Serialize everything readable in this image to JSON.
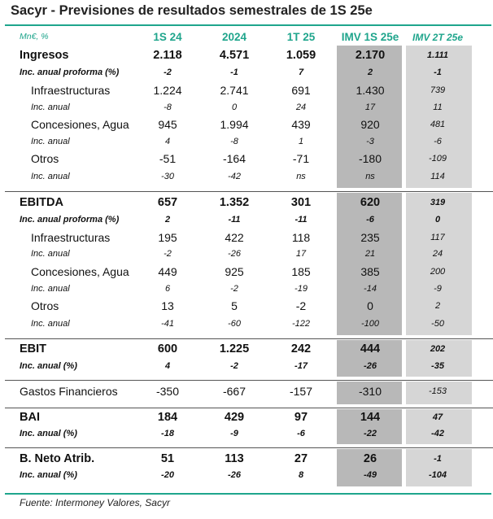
{
  "title": "Sacyr - Previsiones de resultados semestrales de 1S 25e",
  "header": {
    "unit": "Mn€, %",
    "cols": [
      "1S 24",
      "2024",
      "1T 25",
      "IMV 1S 25e",
      "IMV 2T 25e"
    ]
  },
  "rows": [
    {
      "label": "Ingresos",
      "values": [
        "2.118",
        "4.571",
        "1.059",
        "2.170",
        "1.111"
      ]
    },
    {
      "label": "Inc. anual proforma (%)",
      "values": [
        "-2",
        "-1",
        "7",
        "2",
        "-1"
      ]
    },
    {
      "label": "Infraestructuras",
      "values": [
        "1.224",
        "2.741",
        "691",
        "1.430",
        "739"
      ]
    },
    {
      "label": "Inc. anual",
      "values": [
        "-8",
        "0",
        "24",
        "17",
        "11"
      ]
    },
    {
      "label": "Concesiones, Agua",
      "values": [
        "945",
        "1.994",
        "439",
        "920",
        "481"
      ]
    },
    {
      "label": "Inc. anual",
      "values": [
        "4",
        "-8",
        "1",
        "-3",
        "-6"
      ]
    },
    {
      "label": "Otros",
      "values": [
        "-51",
        "-164",
        "-71",
        "-180",
        "-109"
      ]
    },
    {
      "label": "Inc. anual",
      "values": [
        "-30",
        "-42",
        "ns",
        "ns",
        "114"
      ]
    },
    {
      "label": "EBITDA",
      "values": [
        "657",
        "1.352",
        "301",
        "620",
        "319"
      ]
    },
    {
      "label": "Inc. anual proforma (%)",
      "values": [
        "2",
        "-11",
        "-11",
        "-6",
        "0"
      ]
    },
    {
      "label": "Infraestructuras",
      "values": [
        "195",
        "422",
        "118",
        "235",
        "117"
      ]
    },
    {
      "label": "Inc. anual",
      "values": [
        "-2",
        "-26",
        "17",
        "21",
        "24"
      ]
    },
    {
      "label": "Concesiones, Agua",
      "values": [
        "449",
        "925",
        "185",
        "385",
        "200"
      ]
    },
    {
      "label": "Inc. anual",
      "values": [
        "6",
        "-2",
        "-19",
        "-14",
        "-9"
      ]
    },
    {
      "label": "Otros",
      "values": [
        "13",
        "5",
        "-2",
        "0",
        "2"
      ]
    },
    {
      "label": "Inc. anual",
      "values": [
        "-41",
        "-60",
        "-122",
        "-100",
        "-50"
      ]
    },
    {
      "label": "EBIT",
      "values": [
        "600",
        "1.225",
        "242",
        "444",
        "202"
      ]
    },
    {
      "label": "Inc. anual (%)",
      "values": [
        "4",
        "-2",
        "-17",
        "-26",
        "-35"
      ]
    },
    {
      "label": "Gastos Financieros",
      "values": [
        "-350",
        "-667",
        "-157",
        "-310",
        "-153"
      ]
    },
    {
      "label": "BAI",
      "values": [
        "184",
        "429",
        "97",
        "144",
        "47"
      ]
    },
    {
      "label": "Inc. anual (%)",
      "values": [
        "-18",
        "-9",
        "-6",
        "-22",
        "-42"
      ]
    },
    {
      "label": "B. Neto Atrib.",
      "values": [
        "51",
        "113",
        "27",
        "26",
        "-1"
      ]
    },
    {
      "label": "Inc. anual (%)",
      "values": [
        "-20",
        "-26",
        "8",
        "-49",
        "-104"
      ]
    }
  ],
  "footer": "Fuente: Intermoney Valores, Sacyr"
}
